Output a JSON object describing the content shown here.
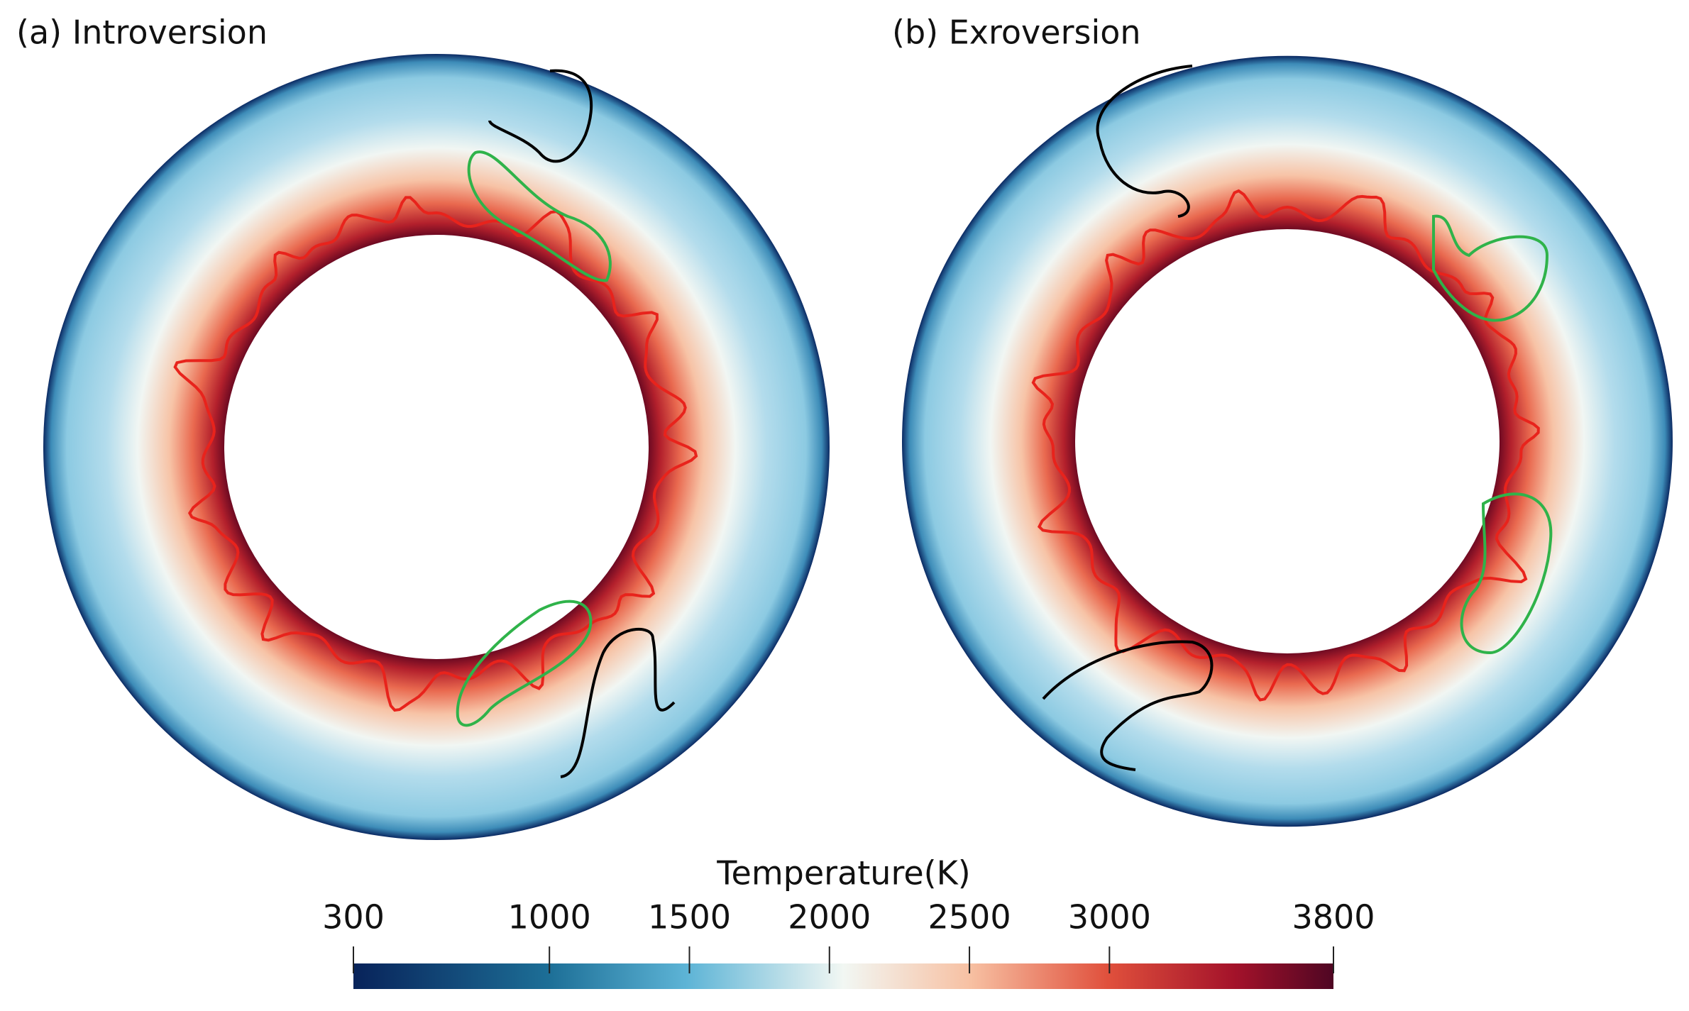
{
  "panels": [
    {
      "label": "(a) Introversion"
    },
    {
      "label": "(b) Exroversion"
    }
  ],
  "colorbar": {
    "title": "Temperature(K)",
    "range": [
      300,
      3800
    ],
    "ticks": [
      300,
      1000,
      1500,
      2000,
      2500,
      3000,
      3800
    ]
  }
}
